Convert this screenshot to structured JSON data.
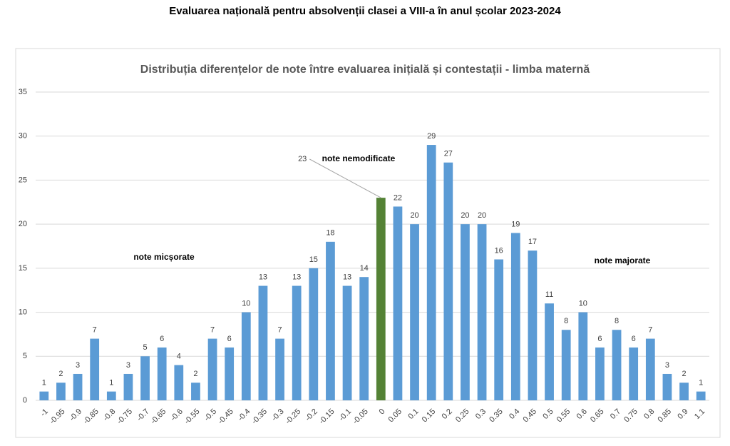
{
  "page_title": "Evaluarea națională pentru absolvenții clasei a VIII-a în anul școlar 2023-2024",
  "chart_data": {
    "type": "bar",
    "title": "Distribuția diferențelor de note între evaluarea inițială și contestații - limba maternă",
    "annotations": [
      "note micșorate",
      "note nemodificate",
      "note majorate"
    ],
    "categories": [
      "-1",
      "-0.95",
      "-0.9",
      "-0.85",
      "-0.8",
      "-0.75",
      "-0.7",
      "-0.65",
      "-0.6",
      "-0.55",
      "-0.5",
      "-0.45",
      "-0.4",
      "-0.35",
      "-0.3",
      "-0.25",
      "-0.2",
      "-0.15",
      "-0.1",
      "-0.05",
      "0",
      "0.05",
      "0.1",
      "0.15",
      "0.2",
      "0.25",
      "0.3",
      "0.35",
      "0.4",
      "0.45",
      "0.5",
      "0.55",
      "0.6",
      "0.65",
      "0.7",
      "0.75",
      "0.8",
      "0.85",
      "0.9",
      "1.1"
    ],
    "values": [
      1,
      2,
      3,
      7,
      1,
      3,
      5,
      6,
      4,
      2,
      7,
      6,
      10,
      13,
      7,
      13,
      15,
      18,
      13,
      14,
      23,
      22,
      20,
      29,
      27,
      20,
      20,
      16,
      19,
      17,
      11,
      8,
      10,
      6,
      8,
      6,
      7,
      3,
      2,
      1
    ],
    "color": "#5b9bd5",
    "colors": [
      "#5b9bd5",
      "#5b9bd5",
      "#5b9bd5",
      "#5b9bd5",
      "#5b9bd5",
      "#5b9bd5",
      "#5b9bd5",
      "#5b9bd5",
      "#5b9bd5",
      "#5b9bd5",
      "#5b9bd5",
      "#5b9bd5",
      "#5b9bd5",
      "#5b9bd5",
      "#5b9bd5",
      "#5b9bd5",
      "#5b9bd5",
      "#5b9bd5",
      "#5b9bd5",
      "#5b9bd5",
      "#548235",
      "#5b9bd5",
      "#5b9bd5",
      "#5b9bd5",
      "#5b9bd5",
      "#5b9bd5",
      "#5b9bd5",
      "#5b9bd5",
      "#5b9bd5",
      "#5b9bd5",
      "#5b9bd5",
      "#5b9bd5",
      "#5b9bd5",
      "#5b9bd5",
      "#5b9bd5",
      "#5b9bd5",
      "#5b9bd5",
      "#5b9bd5",
      "#5b9bd5",
      "#5b9bd5"
    ],
    "ylim": [
      0,
      35
    ],
    "yticks": [
      0,
      5,
      10,
      15,
      20,
      25,
      30,
      35
    ],
    "grid": true
  }
}
